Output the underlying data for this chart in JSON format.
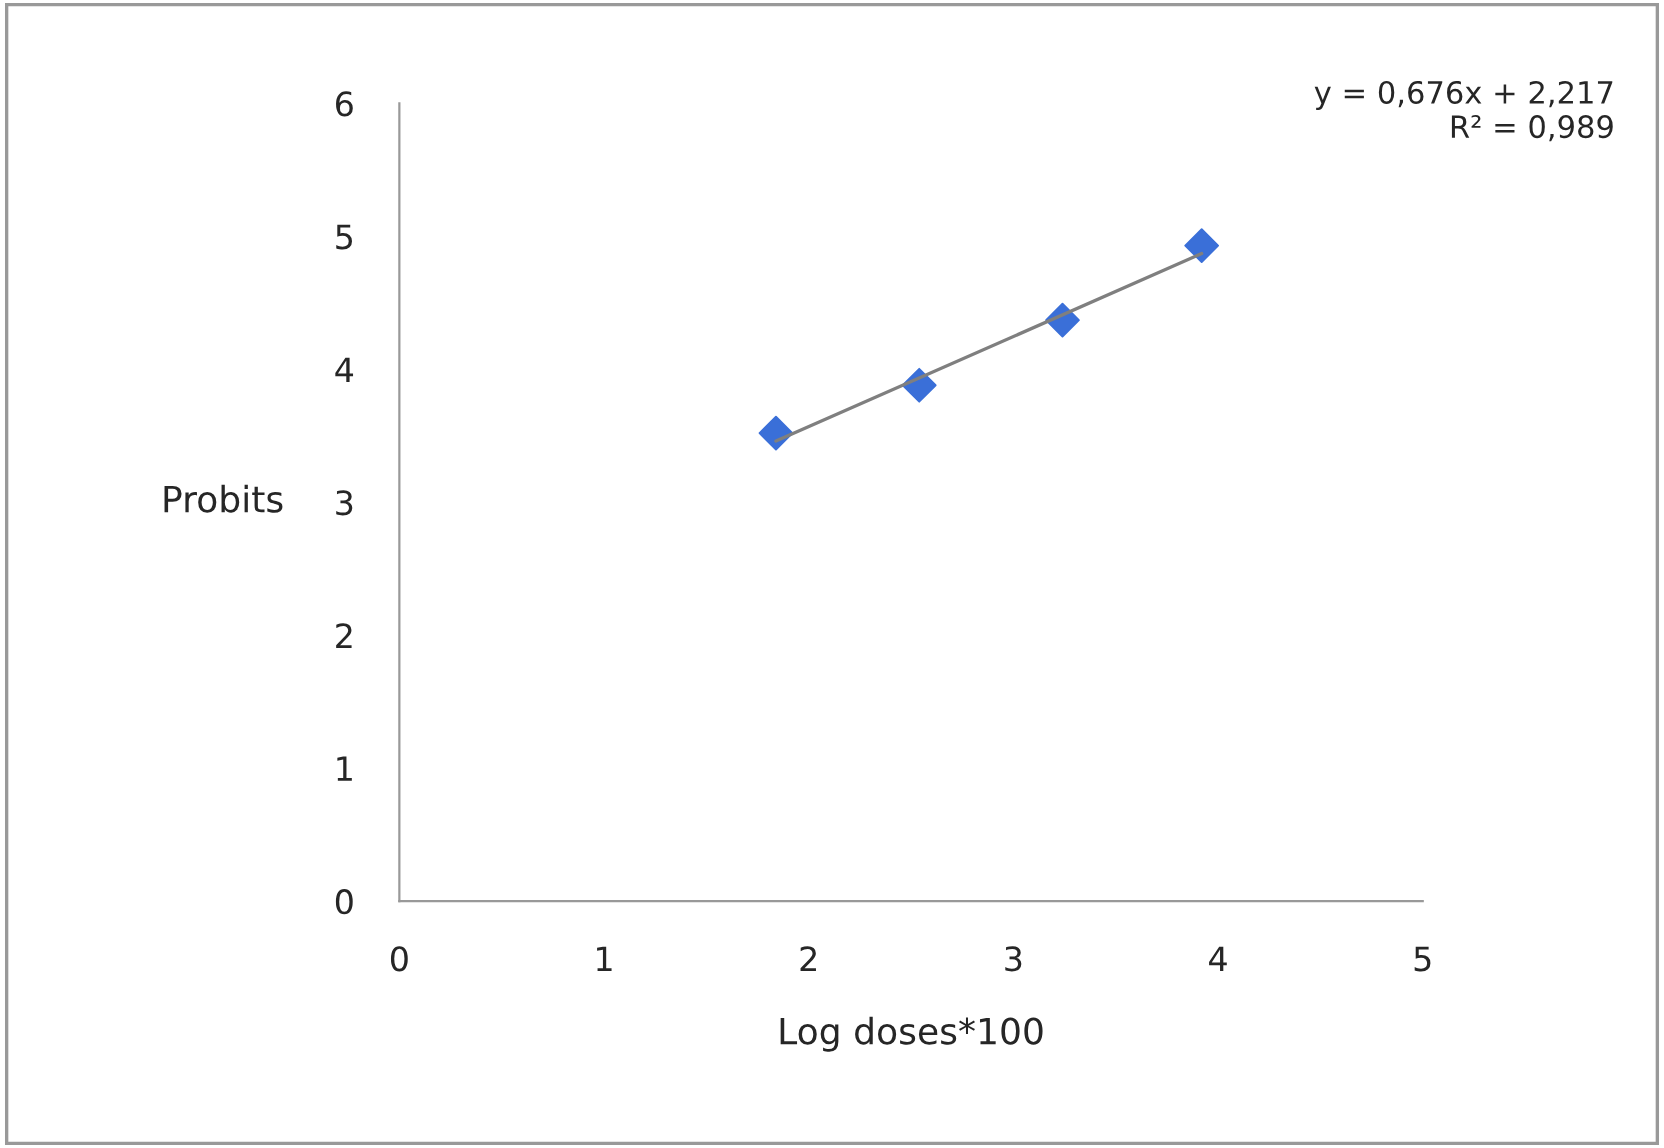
{
  "chart_data": {
    "type": "scatter",
    "xlabel": "Log doses*100",
    "ylabel": "Probits",
    "xlim": [
      0,
      5
    ],
    "xticks": [
      0,
      1,
      2,
      3,
      4,
      5
    ],
    "ylim": [
      0,
      6
    ],
    "yticks": [
      0,
      1,
      2,
      3,
      4,
      5,
      6
    ],
    "grid": false,
    "legend": false,
    "annotations": [
      "y = 0,676x + 2,217\nR² = 0,989"
    ],
    "series": [
      {
        "marker": "diamond",
        "color": "#3a6fd8",
        "x": [
          1.84,
          2.54,
          3.24,
          3.92
        ],
        "values": [
          3.52,
          3.88,
          4.37,
          4.93
        ]
      },
      {
        "type": "line",
        "color": "#7f7f7f",
        "x": [
          1.84,
          3.92
        ],
        "values": [
          3.46,
          4.87
        ]
      }
    ]
  }
}
